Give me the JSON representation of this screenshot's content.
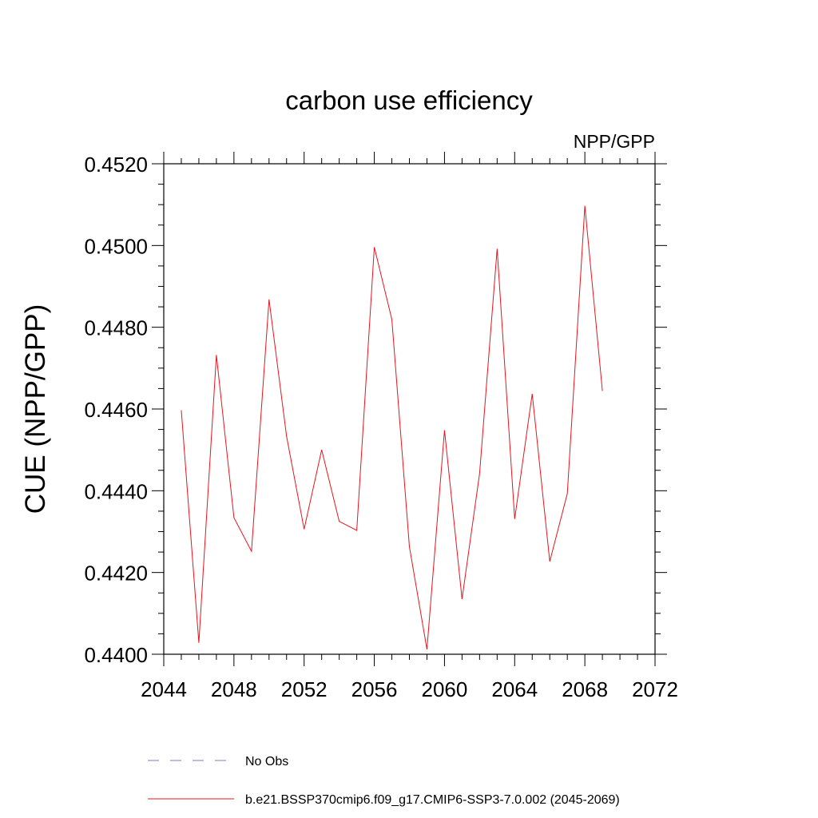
{
  "chart_data": {
    "type": "line",
    "title": "carbon use efficiency",
    "subtitle": "NPP/GPP",
    "xlabel": "",
    "ylabel": "CUE  (NPP/GPP)",
    "xlim": [
      2044,
      2072
    ],
    "ylim": [
      0.44,
      0.452
    ],
    "x_ticks": [
      "2044",
      "2048",
      "2052",
      "2056",
      "2060",
      "2064",
      "2068",
      "2072"
    ],
    "y_ticks": [
      "0.4400",
      "0.4420",
      "0.4440",
      "0.4460",
      "0.4480",
      "0.4500",
      "0.4520"
    ],
    "grid": false,
    "legend_position": "bottom",
    "series": [
      {
        "name": "No Obs",
        "color": "#7b7bc4",
        "dash": true,
        "x": [],
        "y": []
      },
      {
        "name": "b.e21.BSSP370cmip6.f09_g17.CMIP6-SSP3-7.0.002 (2045-2069)",
        "color": "#e8141e",
        "dash": false,
        "x": [
          2045,
          2046,
          2047,
          2048,
          2049,
          2050,
          2051,
          2052,
          2053,
          2054,
          2055,
          2056,
          2057,
          2058,
          2059,
          2060,
          2061,
          2062,
          2063,
          2064,
          2065,
          2066,
          2067,
          2068,
          2069
        ],
        "y": [
          0.44597,
          0.44028,
          0.44732,
          0.44334,
          0.44252,
          0.44868,
          0.44533,
          0.44306,
          0.445,
          0.44325,
          0.44303,
          0.44996,
          0.44819,
          0.44263,
          0.44012,
          0.44548,
          0.44135,
          0.44442,
          0.44992,
          0.44331,
          0.44637,
          0.44227,
          0.44393,
          0.45097,
          0.44644
        ]
      }
    ]
  }
}
